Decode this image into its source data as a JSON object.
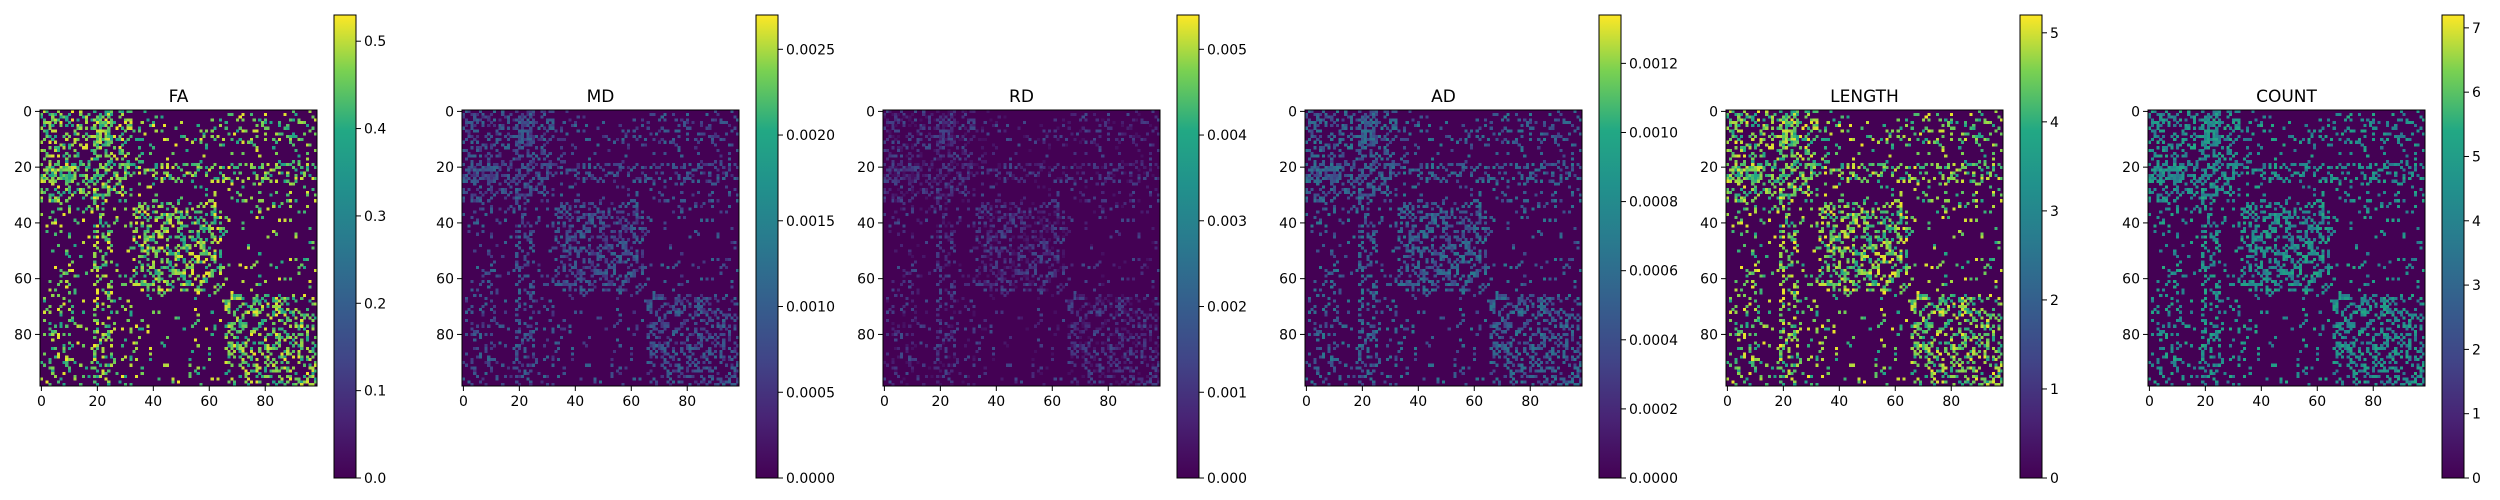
{
  "figure": {
    "colormap": "viridis",
    "matrix_size": 99,
    "background_value_color": "#440154"
  },
  "chart_data": [
    {
      "type": "heatmap",
      "title": "FA",
      "x_ticks": [
        0,
        20,
        40,
        60,
        80
      ],
      "y_ticks": [
        0,
        20,
        40,
        60,
        80
      ],
      "colorbar": {
        "min": 0.0,
        "max": 0.53,
        "ticks": [
          0.0,
          0.1,
          0.2,
          0.3,
          0.4,
          0.5
        ],
        "tick_labels": [
          "0.0",
          "0.1",
          "0.2",
          "0.3",
          "0.4",
          "0.5"
        ]
      },
      "typical_value_fraction": 0.85
    },
    {
      "type": "heatmap",
      "title": "MD",
      "x_ticks": [
        0,
        20,
        40,
        60,
        80
      ],
      "y_ticks": [
        0,
        20,
        40,
        60,
        80
      ],
      "colorbar": {
        "min": 0.0,
        "max": 0.0027,
        "ticks": [
          0.0,
          0.0005,
          0.001,
          0.0015,
          0.002,
          0.0025
        ],
        "tick_labels": [
          "0.0000",
          "0.0005",
          "0.0010",
          "0.0015",
          "0.0020",
          "0.0025"
        ]
      },
      "typical_value_fraction": 0.3
    },
    {
      "type": "heatmap",
      "title": "RD",
      "x_ticks": [
        0,
        20,
        40,
        60,
        80
      ],
      "y_ticks": [
        0,
        20,
        40,
        60,
        80
      ],
      "colorbar": {
        "min": 0.0,
        "max": 0.0054,
        "ticks": [
          0.0,
          0.001,
          0.002,
          0.003,
          0.004,
          0.005
        ],
        "tick_labels": [
          "0.000",
          "0.001",
          "0.002",
          "0.003",
          "0.004",
          "0.005"
        ]
      },
      "typical_value_fraction": 0.16
    },
    {
      "type": "heatmap",
      "title": "AD",
      "x_ticks": [
        0,
        20,
        40,
        60,
        80
      ],
      "y_ticks": [
        0,
        20,
        40,
        60,
        80
      ],
      "colorbar": {
        "min": 0.0,
        "max": 0.00134,
        "ticks": [
          0.0,
          0.0002,
          0.0004,
          0.0006,
          0.0008,
          0.001,
          0.0012
        ],
        "tick_labels": [
          "0.0000",
          "0.0002",
          "0.0004",
          "0.0006",
          "0.0008",
          "0.0010",
          "0.0012"
        ]
      },
      "typical_value_fraction": 0.38
    },
    {
      "type": "heatmap",
      "title": "LENGTH",
      "x_ticks": [
        0,
        20,
        40,
        60,
        80
      ],
      "y_ticks": [
        0,
        20,
        40,
        60,
        80
      ],
      "colorbar": {
        "min": 0,
        "max": 5.2,
        "ticks": [
          0,
          1,
          2,
          3,
          4,
          5
        ],
        "tick_labels": [
          "0",
          "1",
          "2",
          "3",
          "4",
          "5"
        ]
      },
      "typical_value_fraction": 0.85
    },
    {
      "type": "heatmap",
      "title": "COUNT",
      "x_ticks": [
        0,
        20,
        40,
        60,
        80
      ],
      "y_ticks": [
        0,
        20,
        40,
        60,
        80
      ],
      "colorbar": {
        "min": 0,
        "max": 7.2,
        "ticks": [
          0,
          1,
          2,
          3,
          4,
          5,
          6,
          7
        ],
        "tick_labels": [
          "0",
          "1",
          "2",
          "3",
          "4",
          "5",
          "6",
          "7"
        ]
      },
      "typical_value_fraction": 0.62
    }
  ]
}
